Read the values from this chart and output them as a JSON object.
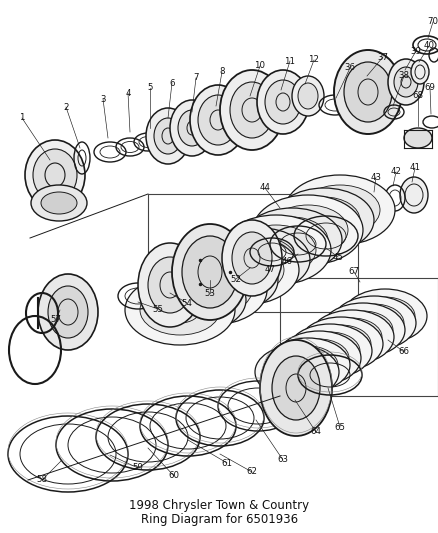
{
  "title": "1998 Chrysler Town & Country",
  "subtitle": "Ring Diagram for 6501936",
  "bg_color": "#ffffff",
  "fig_width": 4.39,
  "fig_height": 5.33,
  "dpi": 100,
  "line_color": "#1a1a1a",
  "text_color": "#111111",
  "font_size": 6.5,
  "title_font_size": 8.5
}
